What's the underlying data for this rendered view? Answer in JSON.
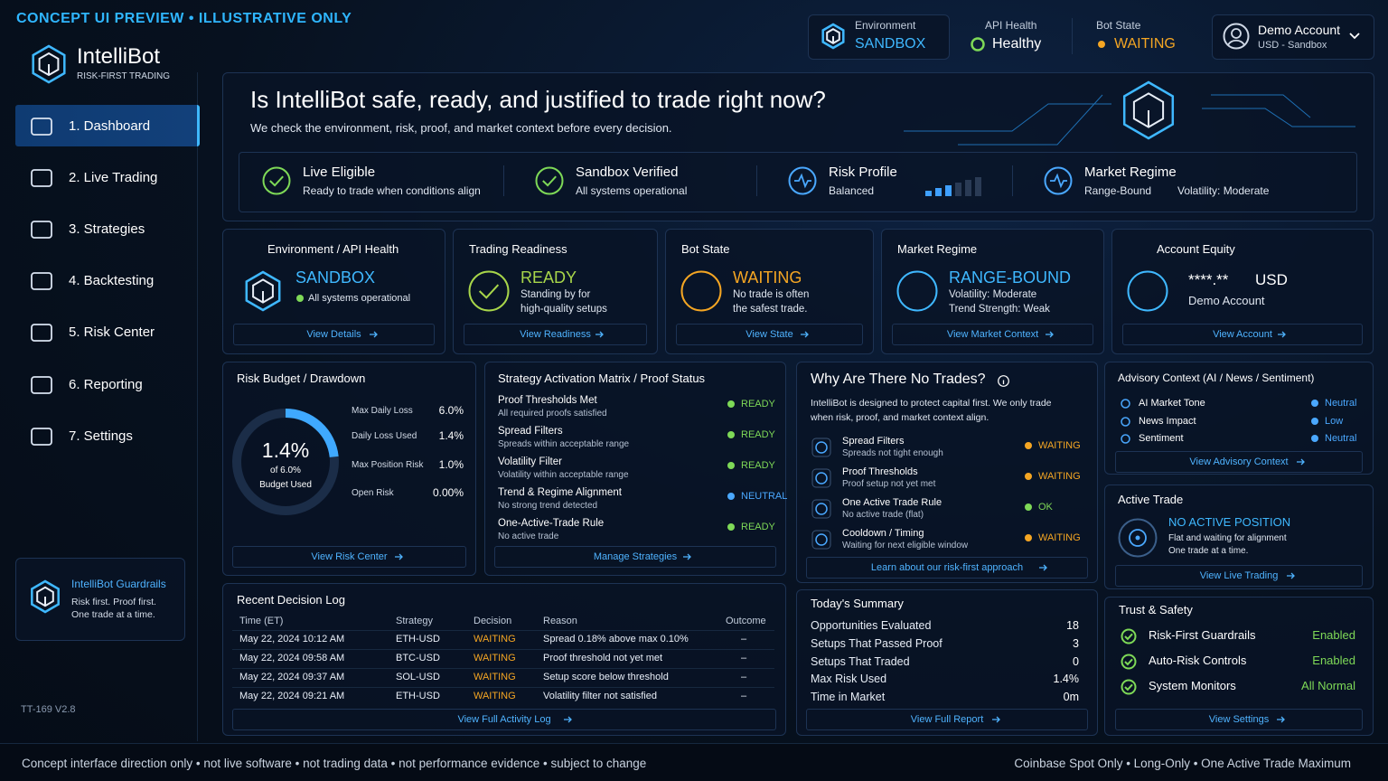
{
  "banner": "CONCEPT UI PREVIEW • ILLUSTRATIVE ONLY",
  "brand": {
    "name": "IntelliBot",
    "tagline": "RISK-FIRST TRADING"
  },
  "nav": [
    "1. Dashboard",
    "2. Live Trading",
    "3. Strategies",
    "4. Backtesting",
    "5. Risk Center",
    "6. Reporting",
    "7. Settings"
  ],
  "guardrails": {
    "title": "IntelliBot Guardrails",
    "lines": [
      "Risk first. Proof first.",
      "One trade at a time."
    ]
  },
  "version": "TT-169 V2.8",
  "status_bar": [
    {
      "label": "Environment",
      "value": "SANDBOX",
      "color": "#3fb8ff"
    },
    {
      "label": "API Health",
      "value": "Healthy",
      "color": "#7ed957"
    },
    {
      "label": "Bot State",
      "value": "WAITING",
      "color": "#f5a623"
    }
  ],
  "account": {
    "name": "Demo Account",
    "detail": "USD - Sandbox"
  },
  "hero": {
    "title": "Is IntelliBot safe, ready, and justified to trade right now?",
    "subtitle": "We check the environment, risk, proof, and market context before every decision.",
    "checks": [
      {
        "title": "Live Eligible",
        "detail": "Ready to trade when conditions align"
      },
      {
        "title": "Sandbox Verified",
        "detail": "All systems operational"
      },
      {
        "title": "Risk Profile",
        "detail": "Balanced"
      },
      {
        "title": "Market Regime",
        "detail": "Range-Bound",
        "extra": "Volatility: Moderate"
      }
    ]
  },
  "cards": [
    {
      "title": "Environment / API Health",
      "status": "SANDBOX",
      "color": "#3fb8ff",
      "lines": [
        "All systems operational"
      ],
      "link": "View Details"
    },
    {
      "title": "Trading Readiness",
      "status": "READY",
      "color": "#a8d64a",
      "lines": [
        "Standing by for",
        "high-quality setups"
      ],
      "link": "View Readiness"
    },
    {
      "title": "Bot State",
      "status": "WAITING",
      "color": "#f5a623",
      "lines": [
        "No trade is often",
        "the safest trade."
      ],
      "link": "View State"
    },
    {
      "title": "Market Regime",
      "status": "RANGE-BOUND",
      "color": "#3fb8ff",
      "lines": [
        "Volatility: Moderate",
        "Trend Strength: Weak"
      ],
      "link": "View Market Context"
    },
    {
      "title": "Account Equity",
      "status": "****.**",
      "unit": "USD",
      "color": "#ffffff",
      "lines": [
        "Demo Account"
      ],
      "link": "View Account"
    }
  ],
  "risk_budget": {
    "title": "Risk Budget / Drawdown",
    "gauge": {
      "value": 1.4,
      "label": "1.4%",
      "max": 6,
      "max_label": "of 6.0%",
      "caption": "Budget Used"
    },
    "rows": [
      [
        "Max Daily Loss",
        "6.0%"
      ],
      [
        "Daily Loss Used",
        "1.4%"
      ],
      [
        "Max Position Risk",
        "1.0%"
      ],
      [
        "Open Risk",
        "0.00%"
      ]
    ],
    "link": "View Risk Center"
  },
  "matrix": {
    "title": "Strategy Activation Matrix / Proof Status",
    "rows": [
      {
        "name": "Proof Thresholds Met",
        "detail": "All required proofs satisfied",
        "status": "READY",
        "color": "#7ed957"
      },
      {
        "name": "Spread Filters",
        "detail": "Spreads within acceptable range",
        "status": "READY",
        "color": "#7ed957"
      },
      {
        "name": "Volatility Filter",
        "detail": "Volatility within acceptable range",
        "status": "READY",
        "color": "#7ed957"
      },
      {
        "name": "Trend & Regime Alignment",
        "detail": "No strong trend detected",
        "status": "NEUTRAL",
        "color": "#4aa8ff"
      },
      {
        "name": "One-Active-Trade Rule",
        "detail": "No active trade",
        "status": "READY",
        "color": "#7ed957"
      }
    ],
    "link": "Manage Strategies"
  },
  "no_trades": {
    "title": "Why Are There No Trades?",
    "intro": "IntelliBot is designed to protect capital first. We only trade when risk, proof, and market context align.",
    "rows": [
      {
        "name": "Spread Filters",
        "detail": "Spreads not tight enough",
        "status": "WAITING",
        "color": "#f5a623"
      },
      {
        "name": "Proof Thresholds",
        "detail": "Proof setup not yet met",
        "status": "WAITING",
        "color": "#f5a623"
      },
      {
        "name": "One Active Trade Rule",
        "detail": "No active trade (flat)",
        "status": "OK",
        "color": "#7ed957"
      },
      {
        "name": "Cooldown / Timing",
        "detail": "Waiting for next eligible window",
        "status": "WAITING",
        "color": "#f5a623"
      }
    ],
    "link": "Learn about our risk-first approach"
  },
  "advisory": {
    "title": "Advisory Context (AI / News / Sentiment)",
    "rows": [
      {
        "name": "AI Market Tone",
        "value": "Neutral"
      },
      {
        "name": "News Impact",
        "value": "Low"
      },
      {
        "name": "Sentiment",
        "value": "Neutral"
      }
    ],
    "link": "View Advisory Context"
  },
  "active_trade": {
    "title": "Active Trade",
    "status": "NO ACTIVE POSITION",
    "lines": [
      "Flat and waiting for alignment",
      "One trade at a time."
    ],
    "link": "View Live Trading"
  },
  "decision_log": {
    "title": "Recent Decision Log",
    "columns": [
      "Time (ET)",
      "Strategy",
      "Decision",
      "Reason",
      "Outcome"
    ],
    "rows": [
      [
        "May 22, 2024 10:12 AM",
        "ETH-USD",
        "WAITING",
        "Spread 0.18% above max 0.10%",
        "–"
      ],
      [
        "May 22, 2024 09:58 AM",
        "BTC-USD",
        "WAITING",
        "Proof threshold not yet met",
        "–"
      ],
      [
        "May 22, 2024 09:37 AM",
        "SOL-USD",
        "WAITING",
        "Setup score below threshold",
        "–"
      ],
      [
        "May 22, 2024 09:21 AM",
        "ETH-USD",
        "WAITING",
        "Volatility filter not satisfied",
        "–"
      ]
    ],
    "link": "View Full Activity Log"
  },
  "summary": {
    "title": "Today's Summary",
    "rows": [
      [
        "Opportunities Evaluated",
        "18"
      ],
      [
        "Setups That Passed Proof",
        "3"
      ],
      [
        "Setups That Traded",
        "0"
      ],
      [
        "Max Risk Used",
        "1.4%"
      ],
      [
        "Time in Market",
        "0m"
      ]
    ],
    "link": "View Full Report"
  },
  "trust": {
    "title": "Trust & Safety",
    "rows": [
      [
        "Risk-First Guardrails",
        "Enabled"
      ],
      [
        "Auto-Risk Controls",
        "Enabled"
      ],
      [
        "System Monitors",
        "All Normal"
      ]
    ],
    "link": "View Settings"
  },
  "footer": {
    "left": "Concept interface direction only • not live software • not trading data • not performance evidence • subject to change",
    "right": "Coinbase Spot Only • Long-Only • One Active Trade Maximum"
  }
}
